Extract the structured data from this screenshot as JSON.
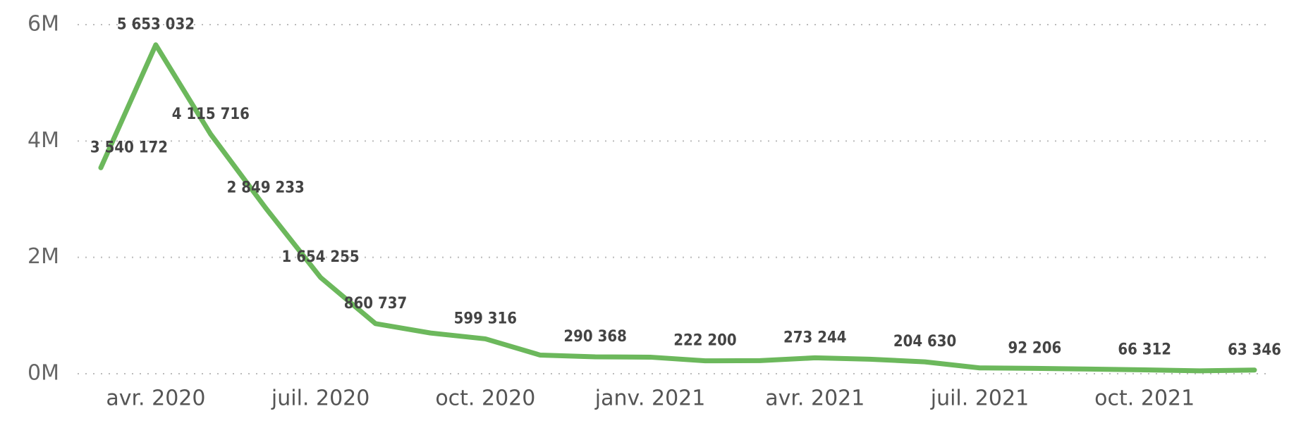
{
  "chart_data": {
    "type": "line",
    "categories": [
      null,
      "avr. 2020",
      null,
      null,
      "juil. 2020",
      null,
      null,
      "oct. 2020",
      null,
      null,
      "janv. 2021",
      null,
      null,
      "avr. 2021",
      null,
      null,
      "juil. 2021",
      null,
      null,
      "oct. 2021",
      null,
      null
    ],
    "series": [
      {
        "color": "#6cb85c",
        "values": [
          3540172,
          5653032,
          4115716,
          2849233,
          1654255,
          860737,
          700000,
          599316,
          320000,
          290368,
          285000,
          222200,
          225000,
          273244,
          250000,
          204630,
          100000,
          92206,
          80000,
          66312,
          50000,
          63346
        ],
        "value_labels": [
          "3 540 172",
          "5 653 032",
          "4 115 716",
          "2 849 233",
          "1 654 255",
          "860 737",
          null,
          "599 316",
          null,
          "290 368",
          null,
          "222 200",
          null,
          "273 244",
          null,
          "204 630",
          null,
          "92 206",
          null,
          "66 312",
          null,
          "63 346"
        ]
      }
    ],
    "ylim": [
      0,
      6000000
    ],
    "yticks": [
      {
        "value": 0,
        "label": "0M"
      },
      {
        "value": 2000000,
        "label": "2M"
      },
      {
        "value": 4000000,
        "label": "4M"
      },
      {
        "value": 6000000,
        "label": "6M"
      }
    ],
    "grid": true
  }
}
